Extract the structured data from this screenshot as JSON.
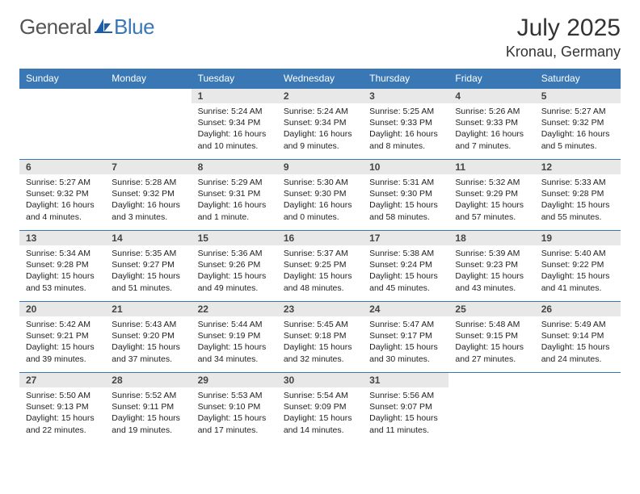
{
  "brand": {
    "part1": "General",
    "part2": "Blue"
  },
  "title": {
    "month_year": "July 2025",
    "location": "Kronau, Germany"
  },
  "colors": {
    "header_bg": "#3a78b5",
    "header_text": "#ffffff",
    "daynum_bg": "#e8e8e8",
    "border": "#3a78b5",
    "body_text": "#222222",
    "brand_gray": "#555555",
    "brand_blue": "#3a78b5"
  },
  "day_headers": [
    "Sunday",
    "Monday",
    "Tuesday",
    "Wednesday",
    "Thursday",
    "Friday",
    "Saturday"
  ],
  "weeks": [
    [
      null,
      null,
      {
        "n": "1",
        "sr": "Sunrise: 5:24 AM",
        "ss": "Sunset: 9:34 PM",
        "dl": "Daylight: 16 hours and 10 minutes."
      },
      {
        "n": "2",
        "sr": "Sunrise: 5:24 AM",
        "ss": "Sunset: 9:34 PM",
        "dl": "Daylight: 16 hours and 9 minutes."
      },
      {
        "n": "3",
        "sr": "Sunrise: 5:25 AM",
        "ss": "Sunset: 9:33 PM",
        "dl": "Daylight: 16 hours and 8 minutes."
      },
      {
        "n": "4",
        "sr": "Sunrise: 5:26 AM",
        "ss": "Sunset: 9:33 PM",
        "dl": "Daylight: 16 hours and 7 minutes."
      },
      {
        "n": "5",
        "sr": "Sunrise: 5:27 AM",
        "ss": "Sunset: 9:32 PM",
        "dl": "Daylight: 16 hours and 5 minutes."
      }
    ],
    [
      {
        "n": "6",
        "sr": "Sunrise: 5:27 AM",
        "ss": "Sunset: 9:32 PM",
        "dl": "Daylight: 16 hours and 4 minutes."
      },
      {
        "n": "7",
        "sr": "Sunrise: 5:28 AM",
        "ss": "Sunset: 9:32 PM",
        "dl": "Daylight: 16 hours and 3 minutes."
      },
      {
        "n": "8",
        "sr": "Sunrise: 5:29 AM",
        "ss": "Sunset: 9:31 PM",
        "dl": "Daylight: 16 hours and 1 minute."
      },
      {
        "n": "9",
        "sr": "Sunrise: 5:30 AM",
        "ss": "Sunset: 9:30 PM",
        "dl": "Daylight: 16 hours and 0 minutes."
      },
      {
        "n": "10",
        "sr": "Sunrise: 5:31 AM",
        "ss": "Sunset: 9:30 PM",
        "dl": "Daylight: 15 hours and 58 minutes."
      },
      {
        "n": "11",
        "sr": "Sunrise: 5:32 AM",
        "ss": "Sunset: 9:29 PM",
        "dl": "Daylight: 15 hours and 57 minutes."
      },
      {
        "n": "12",
        "sr": "Sunrise: 5:33 AM",
        "ss": "Sunset: 9:28 PM",
        "dl": "Daylight: 15 hours and 55 minutes."
      }
    ],
    [
      {
        "n": "13",
        "sr": "Sunrise: 5:34 AM",
        "ss": "Sunset: 9:28 PM",
        "dl": "Daylight: 15 hours and 53 minutes."
      },
      {
        "n": "14",
        "sr": "Sunrise: 5:35 AM",
        "ss": "Sunset: 9:27 PM",
        "dl": "Daylight: 15 hours and 51 minutes."
      },
      {
        "n": "15",
        "sr": "Sunrise: 5:36 AM",
        "ss": "Sunset: 9:26 PM",
        "dl": "Daylight: 15 hours and 49 minutes."
      },
      {
        "n": "16",
        "sr": "Sunrise: 5:37 AM",
        "ss": "Sunset: 9:25 PM",
        "dl": "Daylight: 15 hours and 48 minutes."
      },
      {
        "n": "17",
        "sr": "Sunrise: 5:38 AM",
        "ss": "Sunset: 9:24 PM",
        "dl": "Daylight: 15 hours and 45 minutes."
      },
      {
        "n": "18",
        "sr": "Sunrise: 5:39 AM",
        "ss": "Sunset: 9:23 PM",
        "dl": "Daylight: 15 hours and 43 minutes."
      },
      {
        "n": "19",
        "sr": "Sunrise: 5:40 AM",
        "ss": "Sunset: 9:22 PM",
        "dl": "Daylight: 15 hours and 41 minutes."
      }
    ],
    [
      {
        "n": "20",
        "sr": "Sunrise: 5:42 AM",
        "ss": "Sunset: 9:21 PM",
        "dl": "Daylight: 15 hours and 39 minutes."
      },
      {
        "n": "21",
        "sr": "Sunrise: 5:43 AM",
        "ss": "Sunset: 9:20 PM",
        "dl": "Daylight: 15 hours and 37 minutes."
      },
      {
        "n": "22",
        "sr": "Sunrise: 5:44 AM",
        "ss": "Sunset: 9:19 PM",
        "dl": "Daylight: 15 hours and 34 minutes."
      },
      {
        "n": "23",
        "sr": "Sunrise: 5:45 AM",
        "ss": "Sunset: 9:18 PM",
        "dl": "Daylight: 15 hours and 32 minutes."
      },
      {
        "n": "24",
        "sr": "Sunrise: 5:47 AM",
        "ss": "Sunset: 9:17 PM",
        "dl": "Daylight: 15 hours and 30 minutes."
      },
      {
        "n": "25",
        "sr": "Sunrise: 5:48 AM",
        "ss": "Sunset: 9:15 PM",
        "dl": "Daylight: 15 hours and 27 minutes."
      },
      {
        "n": "26",
        "sr": "Sunrise: 5:49 AM",
        "ss": "Sunset: 9:14 PM",
        "dl": "Daylight: 15 hours and 24 minutes."
      }
    ],
    [
      {
        "n": "27",
        "sr": "Sunrise: 5:50 AM",
        "ss": "Sunset: 9:13 PM",
        "dl": "Daylight: 15 hours and 22 minutes."
      },
      {
        "n": "28",
        "sr": "Sunrise: 5:52 AM",
        "ss": "Sunset: 9:11 PM",
        "dl": "Daylight: 15 hours and 19 minutes."
      },
      {
        "n": "29",
        "sr": "Sunrise: 5:53 AM",
        "ss": "Sunset: 9:10 PM",
        "dl": "Daylight: 15 hours and 17 minutes."
      },
      {
        "n": "30",
        "sr": "Sunrise: 5:54 AM",
        "ss": "Sunset: 9:09 PM",
        "dl": "Daylight: 15 hours and 14 minutes."
      },
      {
        "n": "31",
        "sr": "Sunrise: 5:56 AM",
        "ss": "Sunset: 9:07 PM",
        "dl": "Daylight: 15 hours and 11 minutes."
      },
      null,
      null
    ]
  ]
}
